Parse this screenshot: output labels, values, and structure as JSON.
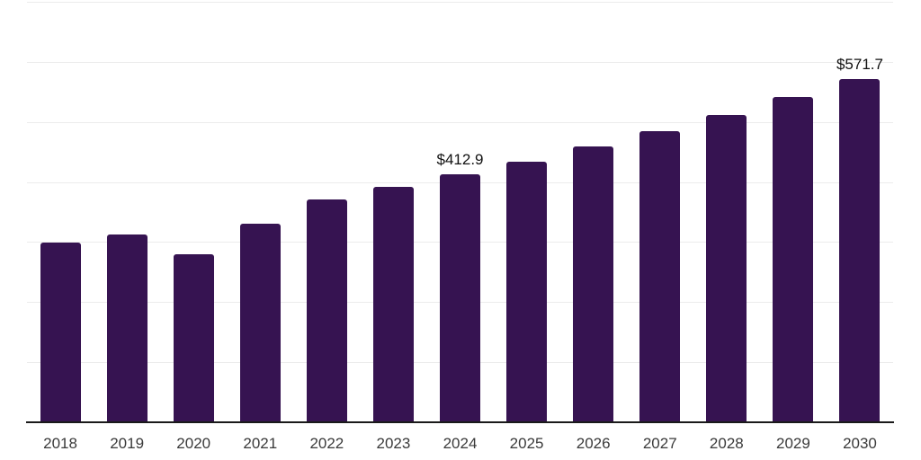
{
  "chart_data": {
    "type": "bar",
    "title": "",
    "xlabel": "",
    "ylabel": "",
    "categories": [
      "2018",
      "2019",
      "2020",
      "2021",
      "2022",
      "2023",
      "2024",
      "2025",
      "2026",
      "2027",
      "2028",
      "2029",
      "2030"
    ],
    "values": [
      299,
      312,
      280,
      331,
      371,
      392,
      412.9,
      434,
      459,
      485,
      512,
      542,
      571.7
    ],
    "point_labels": [
      "",
      "",
      "",
      "",
      "",
      "",
      "$412.9",
      "",
      "",
      "",
      "",
      "",
      "$571.7"
    ],
    "ylim": [
      0,
      700
    ],
    "grid_step": 100,
    "grid": true,
    "y_tick_labels_visible": false,
    "legend_position": "none",
    "colors": {
      "bar": "#361351",
      "gridline": "#ececec",
      "axis_line": "#1a1a1a",
      "value_label": "#111111",
      "tick_label": "#3a3a3a",
      "background": "#ffffff"
    }
  }
}
